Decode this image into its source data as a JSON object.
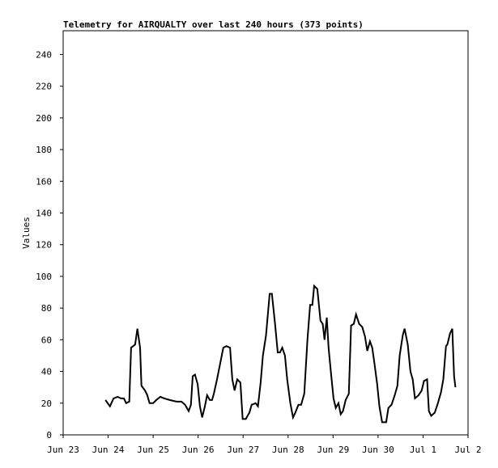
{
  "chart_data": {
    "type": "line",
    "title": "Telemetry for AIRQUALTY over last 240 hours (373 points)",
    "y_label": "Values",
    "color": "#000000",
    "x": [
      0.94,
      1.04,
      1.12,
      1.21,
      1.29,
      1.35,
      1.4,
      1.47,
      1.51,
      1.6,
      1.65,
      1.71,
      1.74,
      1.82,
      1.87,
      1.92,
      2.0,
      2.07,
      2.16,
      2.25,
      2.37,
      2.52,
      2.63,
      2.71,
      2.79,
      2.84,
      2.88,
      2.93,
      2.99,
      3.04,
      3.09,
      3.15,
      3.2,
      3.26,
      3.31,
      3.35,
      3.42,
      3.49,
      3.56,
      3.63,
      3.71,
      3.76,
      3.81,
      3.87,
      3.94,
      3.99,
      4.06,
      4.14,
      4.19,
      4.28,
      4.33,
      4.39,
      4.44,
      4.51,
      4.59,
      4.64,
      4.71,
      4.77,
      4.82,
      4.87,
      4.93,
      4.98,
      5.05,
      5.11,
      5.16,
      5.23,
      5.29,
      5.36,
      5.43,
      5.49,
      5.54,
      5.58,
      5.65,
      5.72,
      5.77,
      5.81,
      5.86,
      5.9,
      5.95,
      6.01,
      6.06,
      6.12,
      6.17,
      6.22,
      6.28,
      6.35,
      6.4,
      6.46,
      6.51,
      6.58,
      6.65,
      6.71,
      6.76,
      6.82,
      6.87,
      6.92,
      6.98,
      7.03,
      7.09,
      7.18,
      7.23,
      7.3,
      7.37,
      7.43,
      7.48,
      7.55,
      7.59,
      7.66,
      7.72,
      7.77,
      7.82,
      7.9,
      7.97,
      8.02,
      8.09,
      8.13,
      8.18,
      8.26,
      8.33,
      8.4,
      8.45,
      8.51,
      8.54,
      8.6,
      8.65,
      8.69,
      8.72
    ],
    "values": [
      22,
      18,
      23,
      24,
      23,
      23,
      20,
      21,
      55,
      57,
      67,
      55,
      31,
      28,
      25,
      20,
      20,
      22,
      24,
      23,
      22,
      21,
      21,
      19,
      15,
      19,
      37,
      38,
      32,
      18,
      11,
      18,
      25,
      22,
      22,
      26,
      35,
      45,
      55,
      56,
      55,
      35,
      28,
      35,
      33,
      10,
      10,
      14,
      19,
      20,
      18,
      33,
      50,
      63,
      89,
      89,
      70,
      52,
      52,
      55,
      50,
      35,
      20,
      11,
      14,
      19,
      19,
      26,
      60,
      82,
      82,
      94,
      92,
      72,
      70,
      60,
      74,
      55,
      40,
      23,
      17,
      20,
      13,
      15,
      22,
      26,
      69,
      70,
      76,
      70,
      68,
      62,
      53,
      59,
      55,
      45,
      32,
      18,
      8,
      8,
      17,
      19,
      25,
      31,
      50,
      63,
      67,
      57,
      40,
      35,
      23,
      25,
      28,
      34,
      35,
      15,
      12,
      14,
      20,
      27,
      35,
      56,
      57,
      64,
      67,
      37,
      30
    ],
    "xlim": [
      0,
      9
    ],
    "xticks": [
      {
        "value": 0,
        "label": "Jun 23"
      },
      {
        "value": 1,
        "label": "Jun 24"
      },
      {
        "value": 2,
        "label": "Jun 25"
      },
      {
        "value": 3,
        "label": "Jun 26"
      },
      {
        "value": 4,
        "label": "Jun 27"
      },
      {
        "value": 5,
        "label": "Jun 28"
      },
      {
        "value": 6,
        "label": "Jun 29"
      },
      {
        "value": 7,
        "label": "Jun 30"
      },
      {
        "value": 8,
        "label": "Jul 1"
      },
      {
        "value": 9,
        "label": "Jul 2"
      }
    ],
    "ylim": [
      0,
      255
    ],
    "yticks": [
      0,
      20,
      40,
      60,
      80,
      100,
      120,
      140,
      160,
      180,
      200,
      220,
      240
    ]
  }
}
